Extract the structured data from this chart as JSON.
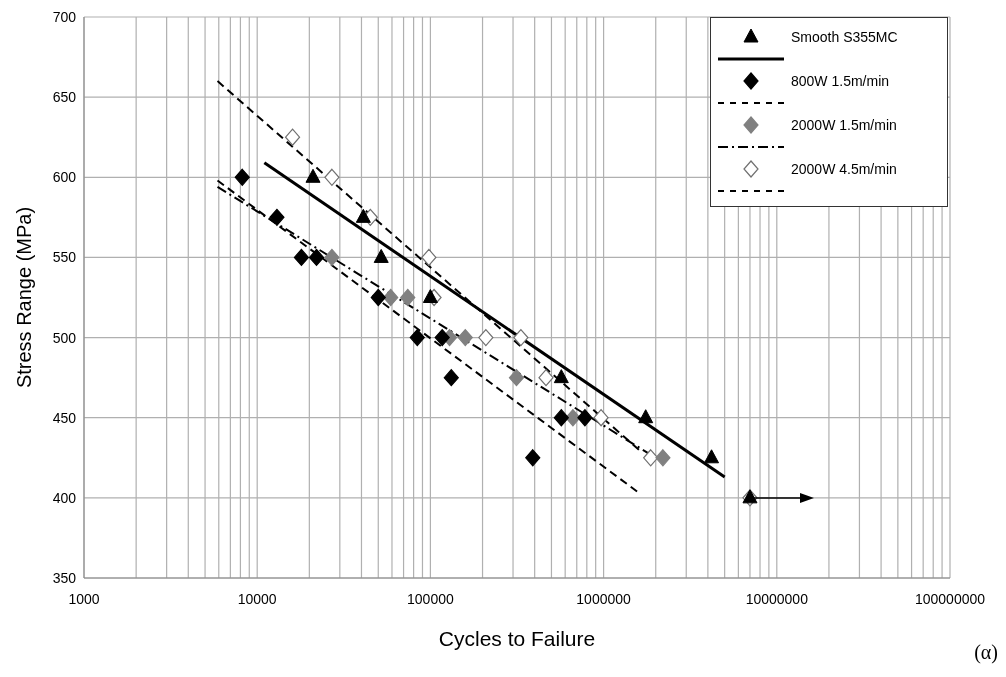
{
  "chart_data": {
    "type": "scatter",
    "xlabel": "Cycles to Failure",
    "ylabel": "Stress Range (MPa)",
    "log": "x",
    "grid": true,
    "legend": "top right",
    "xlim": [
      1000,
      100000000
    ],
    "xticks": [
      1000,
      {
        "value": 2000,
        "label": null
      },
      {
        "value": 3000,
        "label": null
      },
      {
        "value": 4000,
        "label": null
      },
      {
        "value": 5000,
        "label": null
      },
      {
        "value": 6000,
        "label": null
      },
      {
        "value": 7000,
        "label": null
      },
      {
        "value": 8000,
        "label": null
      },
      {
        "value": 9000,
        "label": null
      },
      10000,
      {
        "value": 20000,
        "label": null
      },
      {
        "value": 30000,
        "label": null
      },
      {
        "value": 40000,
        "label": null
      },
      {
        "value": 50000,
        "label": null
      },
      {
        "value": 60000,
        "label": null
      },
      {
        "value": 70000,
        "label": null
      },
      {
        "value": 80000,
        "label": null
      },
      {
        "value": 90000,
        "label": null
      },
      100000,
      {
        "value": 200000,
        "label": null
      },
      {
        "value": 300000,
        "label": null
      },
      {
        "value": 400000,
        "label": null
      },
      {
        "value": 500000,
        "label": null
      },
      {
        "value": 600000,
        "label": null
      },
      {
        "value": 700000,
        "label": null
      },
      {
        "value": 800000,
        "label": null
      },
      {
        "value": 900000,
        "label": null
      },
      1000000,
      {
        "value": 2000000,
        "label": null
      },
      {
        "value": 3000000,
        "label": null
      },
      {
        "value": 4000000,
        "label": null
      },
      {
        "value": 5000000,
        "label": null
      },
      {
        "value": 6000000,
        "label": null
      },
      {
        "value": 7000000,
        "label": null
      },
      {
        "value": 8000000,
        "label": null
      },
      {
        "value": 9000000,
        "label": null
      },
      10000000,
      {
        "value": 20000000,
        "label": null
      },
      {
        "value": 30000000,
        "label": null
      },
      {
        "value": 40000000,
        "label": null
      },
      {
        "value": 50000000,
        "label": null
      },
      {
        "value": 60000000,
        "label": null
      },
      {
        "value": 70000000,
        "label": null
      },
      {
        "value": 80000000,
        "label": null
      },
      {
        "value": 90000000,
        "label": null
      },
      100000000
    ],
    "ylim": [
      350,
      700
    ],
    "yticks": [
      350,
      400,
      450,
      500,
      550,
      600,
      650,
      700
    ],
    "series": [
      {
        "name": "Smooth S355MC",
        "marker": "triangle",
        "color": "#000000",
        "x": [
          21000,
          41000,
          52000,
          100000,
          570000,
          1750000,
          4200000,
          7000000
        ],
        "values": [
          600,
          575,
          550,
          525,
          475,
          450,
          425,
          400
        ]
      },
      {
        "type": "line",
        "line_style": "solid",
        "color": "#000000",
        "x": [
          11000,
          5000000
        ],
        "values": [
          609,
          413
        ]
      },
      {
        "name": "800W 1.5m/min",
        "marker": "diamond",
        "color": "#000000",
        "x": [
          8200,
          13000,
          18000,
          22000,
          50000,
          84000,
          117000,
          132000,
          390000,
          570000,
          780000
        ],
        "values": [
          600,
          575,
          550,
          550,
          525,
          500,
          500,
          475,
          425,
          450,
          450
        ]
      },
      {
        "type": "line",
        "line_style": "dashed",
        "color": "#000000",
        "x": [
          5900,
          1560000
        ],
        "values": [
          598,
          404
        ]
      },
      {
        "name": "2000W 1.5m/min",
        "marker": "diamond",
        "color": "#808080",
        "x": [
          27000,
          59000,
          74000,
          129000,
          159000,
          314000,
          665000,
          2200000
        ],
        "values": [
          550,
          525,
          525,
          500,
          500,
          475,
          450,
          425
        ]
      },
      {
        "type": "line",
        "line_style": "dashdot",
        "color": "#000000",
        "x": [
          5900,
          2000000
        ],
        "values": [
          594,
          425
        ]
      },
      {
        "name": "2000W 4.5m/min",
        "marker": "diamond",
        "color": "#ffffff",
        "x": [
          16000,
          27000,
          45000,
          98000,
          105000,
          209000,
          333000,
          465000,
          967000,
          1870000,
          7000000
        ],
        "values": [
          625,
          600,
          575,
          550,
          525,
          500,
          500,
          475,
          450,
          425,
          400
        ]
      },
      {
        "type": "line",
        "line_style": "dashed",
        "color": "#000000",
        "x": [
          5900,
          1600000
        ],
        "values": [
          660,
          430
        ]
      }
    ],
    "annotations": [
      "(α)"
    ]
  }
}
